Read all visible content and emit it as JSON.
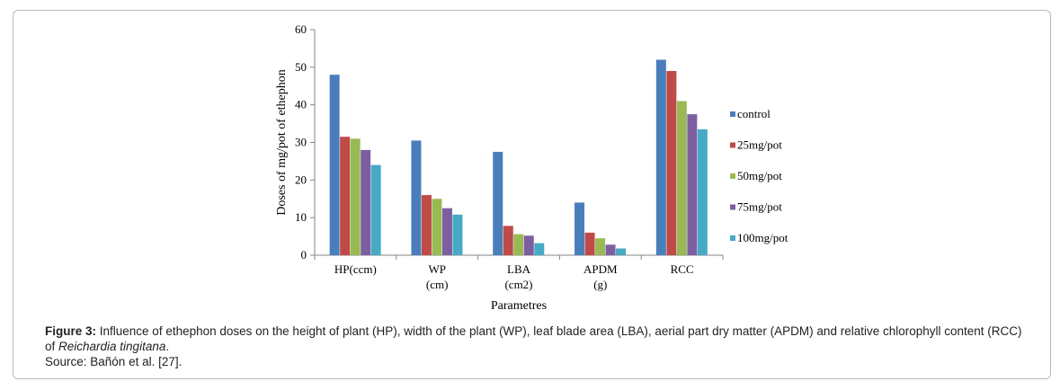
{
  "chart_data": {
    "type": "bar",
    "title": "",
    "ylabel": "Doses of mg/pot of ethephon",
    "xlabel": "Parametres",
    "ylim": [
      0,
      60
    ],
    "yticks": [
      0,
      10,
      20,
      30,
      40,
      50,
      60
    ],
    "categories": [
      [
        "HP(ccm)"
      ],
      [
        "WP",
        "(cm)"
      ],
      [
        "LBA",
        "(cm2)"
      ],
      [
        "APDM",
        "(g)"
      ],
      [
        "RCC"
      ]
    ],
    "series": [
      {
        "name": "control",
        "color": "#4a7ebb",
        "values": [
          48,
          30.5,
          27.5,
          14,
          52
        ]
      },
      {
        "name": "25mg/pot",
        "color": "#be4b48",
        "values": [
          31.5,
          16,
          7.8,
          6,
          49
        ]
      },
      {
        "name": "50mg/pot",
        "color": "#98b954",
        "values": [
          31,
          15,
          5.6,
          4.5,
          41
        ]
      },
      {
        "name": "75mg/pot",
        "color": "#7d5fa0",
        "values": [
          28,
          12.5,
          5.2,
          2.8,
          37.5
        ]
      },
      {
        "name": "100mg/pot",
        "color": "#46aac5",
        "values": [
          24,
          10.8,
          3.2,
          1.8,
          33.5
        ]
      }
    ],
    "legend_position": "right"
  },
  "caption": {
    "label": "Figure 3:",
    "text": " Influence of ethephon doses on the height of plant (HP), width of the plant (WP), leaf blade area (LBA), aerial part dry matter (APDM) and relative chlorophyll content (RCC) of ",
    "species": "Reichardia tingitana",
    "end": ".",
    "source": "Source: Bañón et al. [27]."
  }
}
